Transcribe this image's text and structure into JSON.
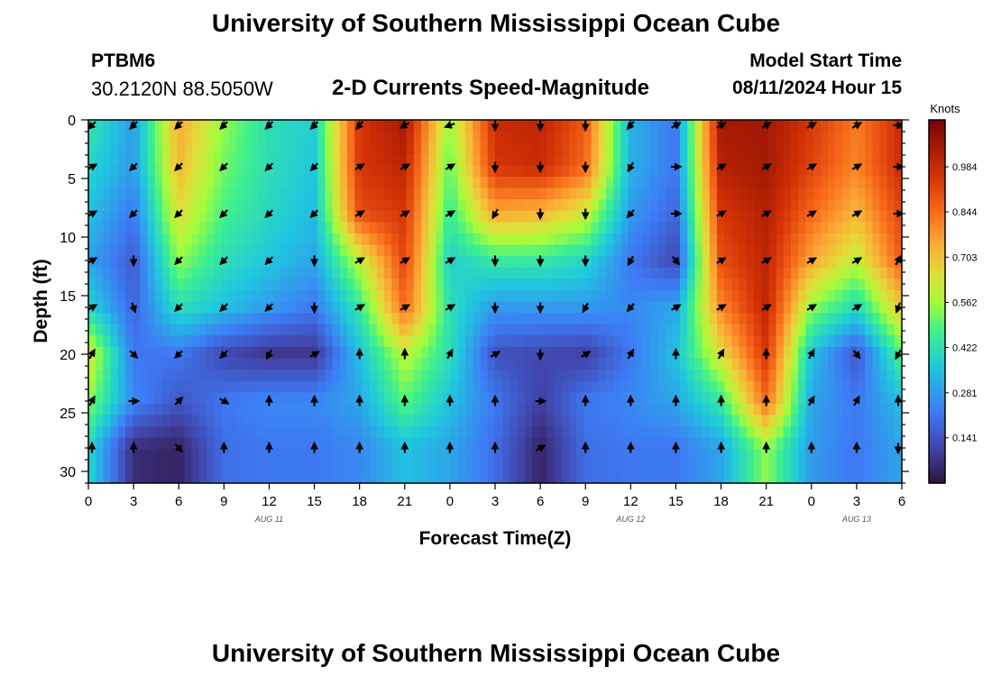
{
  "header": {
    "title": "University of Southern Mississippi Ocean Cube",
    "station": "PTBM6",
    "coords": "30.2120N  88.5050W",
    "subtitle": "2-D Currents Speed-Magnitude",
    "model_start_label": "Model Start Time",
    "model_start_value": "08/11/2024 Hour 15"
  },
  "footer": {
    "title": "University of Southern Mississippi Ocean Cube"
  },
  "chart_data": {
    "type": "heatmap",
    "title": "2-D Currents Speed-Magnitude",
    "xlabel": "Forecast Time(Z)",
    "ylabel": "Depth (ft)",
    "x_tick_labels": [
      "0",
      "3",
      "6",
      "9",
      "12",
      "15",
      "18",
      "21",
      "0",
      "3",
      "6",
      "9",
      "12",
      "15",
      "18",
      "21",
      "0",
      "3",
      "6"
    ],
    "x_range_hours": [
      0,
      54
    ],
    "date_labels": [
      {
        "label": "AUG 11",
        "hour": 12
      },
      {
        "label": "AUG 12",
        "hour": 36
      },
      {
        "label": "AUG 13",
        "hour": 51
      }
    ],
    "y_ticks": [
      0,
      5,
      10,
      15,
      20,
      25,
      30
    ],
    "ylim": [
      31,
      0
    ],
    "colorbar": {
      "label": "Knots",
      "min": 0.0,
      "max": 1.13,
      "tick_values": [
        0.141,
        0.281,
        0.422,
        0.562,
        0.703,
        0.844,
        0.984
      ],
      "tick_labels": [
        "0.141",
        "0.281",
        "0.422",
        "0.562",
        "0.703",
        "0.844",
        "0.984"
      ]
    },
    "depth_levels": [
      0,
      4,
      8,
      12,
      16,
      20,
      24,
      28
    ],
    "arrow_hours": [
      0,
      3,
      6,
      9,
      12,
      15,
      18,
      21,
      24,
      27,
      30,
      33,
      36,
      39,
      42,
      45,
      48,
      51,
      54
    ],
    "speed_grid_knots": [
      [
        0.45,
        0.28,
        0.75,
        0.55,
        0.42,
        0.38,
        0.95,
        1.05,
        0.55,
        0.98,
        1.0,
        0.88,
        0.32,
        0.22,
        1.05,
        1.05,
        0.95,
        0.82,
        0.98
      ],
      [
        0.4,
        0.28,
        0.72,
        0.52,
        0.42,
        0.36,
        0.95,
        1.0,
        0.5,
        0.95,
        0.98,
        0.85,
        0.32,
        0.22,
        1.02,
        1.05,
        0.92,
        0.8,
        0.98
      ],
      [
        0.35,
        0.22,
        0.65,
        0.48,
        0.4,
        0.34,
        0.9,
        0.95,
        0.45,
        0.75,
        0.72,
        0.62,
        0.28,
        0.18,
        0.95,
        1.02,
        0.85,
        0.72,
        0.92
      ],
      [
        0.3,
        0.16,
        0.55,
        0.42,
        0.36,
        0.3,
        0.6,
        0.92,
        0.38,
        0.45,
        0.45,
        0.4,
        0.22,
        0.12,
        0.9,
        1.0,
        0.75,
        0.6,
        0.88
      ],
      [
        0.4,
        0.18,
        0.42,
        0.35,
        0.28,
        0.22,
        0.45,
        0.85,
        0.42,
        0.28,
        0.28,
        0.28,
        0.25,
        0.3,
        0.8,
        1.0,
        0.55,
        0.4,
        0.7
      ],
      [
        0.65,
        0.22,
        0.22,
        0.12,
        0.08,
        0.08,
        0.35,
        0.6,
        0.42,
        0.14,
        0.12,
        0.1,
        0.22,
        0.35,
        0.65,
        0.95,
        0.35,
        0.15,
        0.5
      ],
      [
        0.55,
        0.25,
        0.15,
        0.22,
        0.25,
        0.25,
        0.3,
        0.5,
        0.35,
        0.22,
        0.1,
        0.22,
        0.25,
        0.3,
        0.45,
        0.85,
        0.3,
        0.22,
        0.35
      ],
      [
        0.4,
        0.06,
        0.04,
        0.2,
        0.22,
        0.22,
        0.25,
        0.35,
        0.3,
        0.2,
        0.04,
        0.2,
        0.22,
        0.22,
        0.3,
        0.55,
        0.28,
        0.22,
        0.3
      ]
    ],
    "current_directions_deg": [
      [
        225,
        225,
        225,
        225,
        225,
        225,
        220,
        240,
        250,
        180,
        180,
        180,
        220,
        60,
        60,
        60,
        60,
        60,
        90
      ],
      [
        60,
        225,
        225,
        225,
        225,
        225,
        60,
        60,
        60,
        180,
        180,
        180,
        210,
        90,
        60,
        60,
        60,
        60,
        90
      ],
      [
        60,
        225,
        225,
        225,
        225,
        225,
        60,
        60,
        60,
        210,
        180,
        180,
        220,
        90,
        60,
        60,
        60,
        60,
        90
      ],
      [
        60,
        180,
        225,
        225,
        225,
        180,
        60,
        60,
        60,
        180,
        180,
        180,
        210,
        140,
        60,
        60,
        60,
        60,
        30
      ],
      [
        60,
        160,
        225,
        225,
        225,
        180,
        60,
        60,
        60,
        180,
        180,
        210,
        220,
        60,
        60,
        60,
        60,
        60,
        200
      ],
      [
        30,
        135,
        225,
        225,
        210,
        60,
        0,
        0,
        30,
        60,
        180,
        60,
        30,
        0,
        30,
        0,
        30,
        140,
        210
      ],
      [
        30,
        90,
        45,
        120,
        0,
        0,
        0,
        0,
        0,
        0,
        90,
        0,
        0,
        0,
        0,
        0,
        30,
        30,
        0
      ],
      [
        0,
        0,
        140,
        0,
        0,
        0,
        0,
        0,
        0,
        0,
        60,
        0,
        0,
        0,
        0,
        0,
        0,
        0,
        180
      ]
    ]
  }
}
